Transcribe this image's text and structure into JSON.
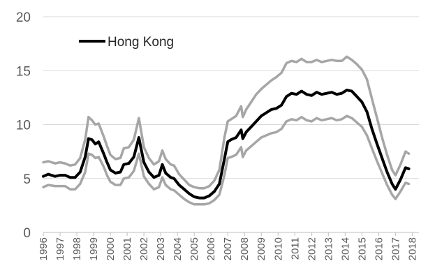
{
  "chart_data": {
    "type": "line",
    "title": "",
    "xlabel": "",
    "ylabel": "",
    "ylim": [
      0,
      20
    ],
    "yticks": [
      "0",
      "5",
      "10",
      "15",
      "20"
    ],
    "xticks": [
      "1996",
      "1997",
      "1998",
      "1999",
      "2000",
      "2001",
      "2002",
      "2003",
      "2004",
      "2005",
      "2006",
      "2007",
      "2008",
      "2009",
      "2010",
      "2011",
      "2012",
      "2013",
      "2014",
      "2015",
      "2016",
      "2017",
      "2018"
    ],
    "grid": "horizontal",
    "legend": "top-left",
    "series": [
      {
        "name": "Hong Kong",
        "color": "#000000",
        "role": "central",
        "points": [
          [
            1996.0,
            5.2
          ],
          [
            1996.3,
            5.4
          ],
          [
            1996.7,
            5.2
          ],
          [
            1997.0,
            5.3
          ],
          [
            1997.3,
            5.3
          ],
          [
            1997.6,
            5.1
          ],
          [
            1997.9,
            5.1
          ],
          [
            1998.2,
            5.6
          ],
          [
            1998.5,
            7.0
          ],
          [
            1998.7,
            8.7
          ],
          [
            1998.9,
            8.6
          ],
          [
            1999.1,
            8.2
          ],
          [
            1999.3,
            8.4
          ],
          [
            1999.6,
            7.3
          ],
          [
            1999.8,
            6.5
          ],
          [
            2000.0,
            5.8
          ],
          [
            2000.3,
            5.5
          ],
          [
            2000.6,
            5.6
          ],
          [
            2000.8,
            6.3
          ],
          [
            2001.1,
            6.4
          ],
          [
            2001.4,
            7.0
          ],
          [
            2001.7,
            8.8
          ],
          [
            2001.8,
            8.0
          ],
          [
            2002.0,
            6.5
          ],
          [
            2002.3,
            5.6
          ],
          [
            2002.6,
            5.1
          ],
          [
            2002.9,
            5.3
          ],
          [
            2003.1,
            6.3
          ],
          [
            2003.3,
            5.5
          ],
          [
            2003.6,
            5.1
          ],
          [
            2003.8,
            5.0
          ],
          [
            2004.1,
            4.4
          ],
          [
            2004.4,
            4.0
          ],
          [
            2004.7,
            3.6
          ],
          [
            2005.0,
            3.3
          ],
          [
            2005.3,
            3.2
          ],
          [
            2005.6,
            3.2
          ],
          [
            2005.9,
            3.4
          ],
          [
            2006.2,
            3.8
          ],
          [
            2006.5,
            4.5
          ],
          [
            2006.8,
            6.8
          ],
          [
            2007.0,
            8.4
          ],
          [
            2007.2,
            8.6
          ],
          [
            2007.5,
            8.8
          ],
          [
            2007.8,
            9.5
          ],
          [
            2007.9,
            8.7
          ],
          [
            2008.1,
            9.3
          ],
          [
            2008.4,
            9.8
          ],
          [
            2008.7,
            10.3
          ],
          [
            2009.0,
            10.8
          ],
          [
            2009.3,
            11.1
          ],
          [
            2009.6,
            11.4
          ],
          [
            2009.9,
            11.5
          ],
          [
            2010.2,
            11.8
          ],
          [
            2010.5,
            12.6
          ],
          [
            2010.8,
            12.9
          ],
          [
            2011.1,
            12.8
          ],
          [
            2011.4,
            13.1
          ],
          [
            2011.7,
            12.8
          ],
          [
            2012.0,
            12.7
          ],
          [
            2012.3,
            13.0
          ],
          [
            2012.6,
            12.8
          ],
          [
            2012.9,
            12.9
          ],
          [
            2013.2,
            13.0
          ],
          [
            2013.5,
            12.8
          ],
          [
            2013.8,
            12.9
          ],
          [
            2014.1,
            13.2
          ],
          [
            2014.4,
            13.1
          ],
          [
            2014.7,
            12.6
          ],
          [
            2015.0,
            12.1
          ],
          [
            2015.3,
            11.2
          ],
          [
            2015.6,
            9.6
          ],
          [
            2015.9,
            8.2
          ],
          [
            2016.2,
            6.9
          ],
          [
            2016.5,
            5.6
          ],
          [
            2016.8,
            4.5
          ],
          [
            2017.0,
            4.0
          ],
          [
            2017.3,
            4.9
          ],
          [
            2017.6,
            6.0
          ],
          [
            2017.8,
            5.9
          ]
        ]
      },
      {
        "name": "",
        "color": "#a6a6a6",
        "role": "upper-band",
        "points": [
          [
            1996.0,
            6.5
          ],
          [
            1996.3,
            6.6
          ],
          [
            1996.7,
            6.4
          ],
          [
            1997.0,
            6.5
          ],
          [
            1997.3,
            6.4
          ],
          [
            1997.6,
            6.2
          ],
          [
            1997.9,
            6.3
          ],
          [
            1998.2,
            6.9
          ],
          [
            1998.5,
            8.6
          ],
          [
            1998.7,
            10.7
          ],
          [
            1998.9,
            10.4
          ],
          [
            1999.1,
            10.0
          ],
          [
            1999.3,
            10.1
          ],
          [
            1999.6,
            8.9
          ],
          [
            1999.8,
            8.0
          ],
          [
            2000.0,
            7.2
          ],
          [
            2000.3,
            6.8
          ],
          [
            2000.6,
            6.9
          ],
          [
            2000.8,
            7.8
          ],
          [
            2001.1,
            7.9
          ],
          [
            2001.4,
            8.6
          ],
          [
            2001.7,
            10.6
          ],
          [
            2001.8,
            9.7
          ],
          [
            2002.0,
            7.9
          ],
          [
            2002.3,
            6.9
          ],
          [
            2002.6,
            6.3
          ],
          [
            2002.9,
            6.6
          ],
          [
            2003.1,
            7.6
          ],
          [
            2003.3,
            6.8
          ],
          [
            2003.6,
            6.3
          ],
          [
            2003.8,
            6.2
          ],
          [
            2004.1,
            5.4
          ],
          [
            2004.4,
            4.9
          ],
          [
            2004.7,
            4.4
          ],
          [
            2005.0,
            4.2
          ],
          [
            2005.3,
            4.1
          ],
          [
            2005.6,
            4.1
          ],
          [
            2005.9,
            4.3
          ],
          [
            2006.2,
            4.8
          ],
          [
            2006.5,
            5.8
          ],
          [
            2006.8,
            8.8
          ],
          [
            2007.0,
            10.3
          ],
          [
            2007.2,
            10.5
          ],
          [
            2007.5,
            10.8
          ],
          [
            2007.8,
            11.7
          ],
          [
            2007.9,
            10.7
          ],
          [
            2008.1,
            11.4
          ],
          [
            2008.4,
            12.1
          ],
          [
            2008.7,
            12.8
          ],
          [
            2009.0,
            13.3
          ],
          [
            2009.3,
            13.7
          ],
          [
            2009.6,
            14.1
          ],
          [
            2009.9,
            14.4
          ],
          [
            2010.2,
            14.8
          ],
          [
            2010.5,
            15.7
          ],
          [
            2010.8,
            15.9
          ],
          [
            2011.1,
            15.8
          ],
          [
            2011.4,
            16.1
          ],
          [
            2011.7,
            15.8
          ],
          [
            2012.0,
            15.8
          ],
          [
            2012.3,
            16.0
          ],
          [
            2012.6,
            15.8
          ],
          [
            2012.9,
            15.9
          ],
          [
            2013.2,
            16.0
          ],
          [
            2013.5,
            15.9
          ],
          [
            2013.8,
            15.9
          ],
          [
            2014.1,
            16.3
          ],
          [
            2014.4,
            16.0
          ],
          [
            2014.7,
            15.6
          ],
          [
            2015.0,
            15.1
          ],
          [
            2015.3,
            14.2
          ],
          [
            2015.6,
            12.4
          ],
          [
            2015.9,
            10.6
          ],
          [
            2016.2,
            8.8
          ],
          [
            2016.5,
            7.2
          ],
          [
            2016.8,
            5.8
          ],
          [
            2017.0,
            5.3
          ],
          [
            2017.3,
            6.3
          ],
          [
            2017.6,
            7.5
          ],
          [
            2017.8,
            7.3
          ]
        ]
      },
      {
        "name": "",
        "color": "#a6a6a6",
        "role": "lower-band",
        "points": [
          [
            1996.0,
            4.2
          ],
          [
            1996.3,
            4.4
          ],
          [
            1996.7,
            4.3
          ],
          [
            1997.0,
            4.3
          ],
          [
            1997.3,
            4.3
          ],
          [
            1997.6,
            4.0
          ],
          [
            1997.9,
            4.0
          ],
          [
            1998.2,
            4.5
          ],
          [
            1998.5,
            5.6
          ],
          [
            1998.7,
            7.3
          ],
          [
            1998.9,
            7.2
          ],
          [
            1999.1,
            6.9
          ],
          [
            1999.3,
            7.0
          ],
          [
            1999.6,
            6.1
          ],
          [
            1999.8,
            5.3
          ],
          [
            2000.0,
            4.7
          ],
          [
            2000.3,
            4.4
          ],
          [
            2000.6,
            4.4
          ],
          [
            2000.8,
            5.0
          ],
          [
            2001.1,
            5.1
          ],
          [
            2001.4,
            5.7
          ],
          [
            2001.7,
            7.3
          ],
          [
            2001.8,
            6.6
          ],
          [
            2002.0,
            5.2
          ],
          [
            2002.3,
            4.5
          ],
          [
            2002.6,
            4.0
          ],
          [
            2002.9,
            4.2
          ],
          [
            2003.1,
            5.1
          ],
          [
            2003.3,
            4.4
          ],
          [
            2003.6,
            4.0
          ],
          [
            2003.8,
            3.9
          ],
          [
            2004.1,
            3.5
          ],
          [
            2004.4,
            3.1
          ],
          [
            2004.7,
            2.8
          ],
          [
            2005.0,
            2.6
          ],
          [
            2005.3,
            2.6
          ],
          [
            2005.6,
            2.6
          ],
          [
            2005.9,
            2.7
          ],
          [
            2006.2,
            3.0
          ],
          [
            2006.5,
            3.5
          ],
          [
            2006.8,
            5.3
          ],
          [
            2007.0,
            6.9
          ],
          [
            2007.2,
            7.0
          ],
          [
            2007.5,
            7.2
          ],
          [
            2007.8,
            7.9
          ],
          [
            2007.9,
            7.0
          ],
          [
            2008.1,
            7.6
          ],
          [
            2008.4,
            8.0
          ],
          [
            2008.7,
            8.4
          ],
          [
            2009.0,
            8.8
          ],
          [
            2009.3,
            9.0
          ],
          [
            2009.6,
            9.2
          ],
          [
            2009.9,
            9.3
          ],
          [
            2010.2,
            9.6
          ],
          [
            2010.5,
            10.3
          ],
          [
            2010.8,
            10.5
          ],
          [
            2011.1,
            10.4
          ],
          [
            2011.4,
            10.7
          ],
          [
            2011.7,
            10.4
          ],
          [
            2012.0,
            10.3
          ],
          [
            2012.3,
            10.6
          ],
          [
            2012.6,
            10.4
          ],
          [
            2012.9,
            10.5
          ],
          [
            2013.2,
            10.6
          ],
          [
            2013.5,
            10.4
          ],
          [
            2013.8,
            10.5
          ],
          [
            2014.1,
            10.8
          ],
          [
            2014.4,
            10.6
          ],
          [
            2014.7,
            10.2
          ],
          [
            2015.0,
            9.8
          ],
          [
            2015.3,
            9.0
          ],
          [
            2015.6,
            7.8
          ],
          [
            2015.9,
            6.6
          ],
          [
            2016.2,
            5.5
          ],
          [
            2016.5,
            4.4
          ],
          [
            2016.8,
            3.5
          ],
          [
            2017.0,
            3.1
          ],
          [
            2017.3,
            3.8
          ],
          [
            2017.6,
            4.6
          ],
          [
            2017.8,
            4.5
          ]
        ]
      }
    ]
  }
}
